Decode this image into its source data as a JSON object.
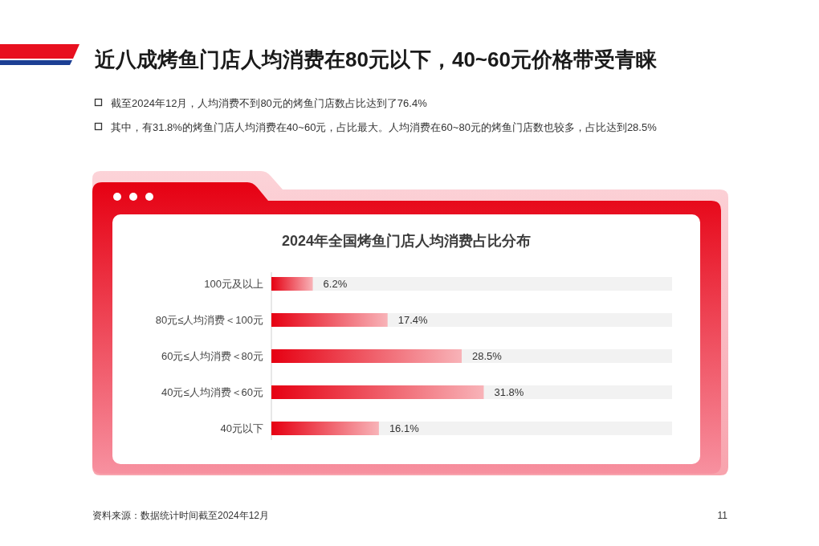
{
  "chart_data": {
    "type": "bar",
    "orientation": "horizontal",
    "title": "2024年全国烤鱼门店人均消费占比分布",
    "categories": [
      "100元及以上",
      "80元≤人均消费＜100元",
      "60元≤人均消费＜80元",
      "40元≤人均消费＜60元",
      "40元以下"
    ],
    "values": [
      6.2,
      17.4,
      28.5,
      31.8,
      16.1
    ],
    "color": "#e60012",
    "xlim": [
      0,
      60
    ],
    "value_labels": [
      "6.2%",
      "17.4%",
      "28.5%",
      "31.8%",
      "16.1%"
    ],
    "tick_labels": "y",
    "annotations": [
      "近八成烤鱼门店人均消费在80元以下，40~60元价格带受青睐",
      "截至2024年12月，人均消费不到80元的烤鱼门店数占比达到了76.4%",
      "其中，有31.8%的烤鱼门店人均消费在40~60元，占比最大。人均消费在60~80元的烤鱼门店数也较多，占比达到28.5%",
      "资料来源：数据统计时间截至2024年12月",
      "11"
    ]
  }
}
